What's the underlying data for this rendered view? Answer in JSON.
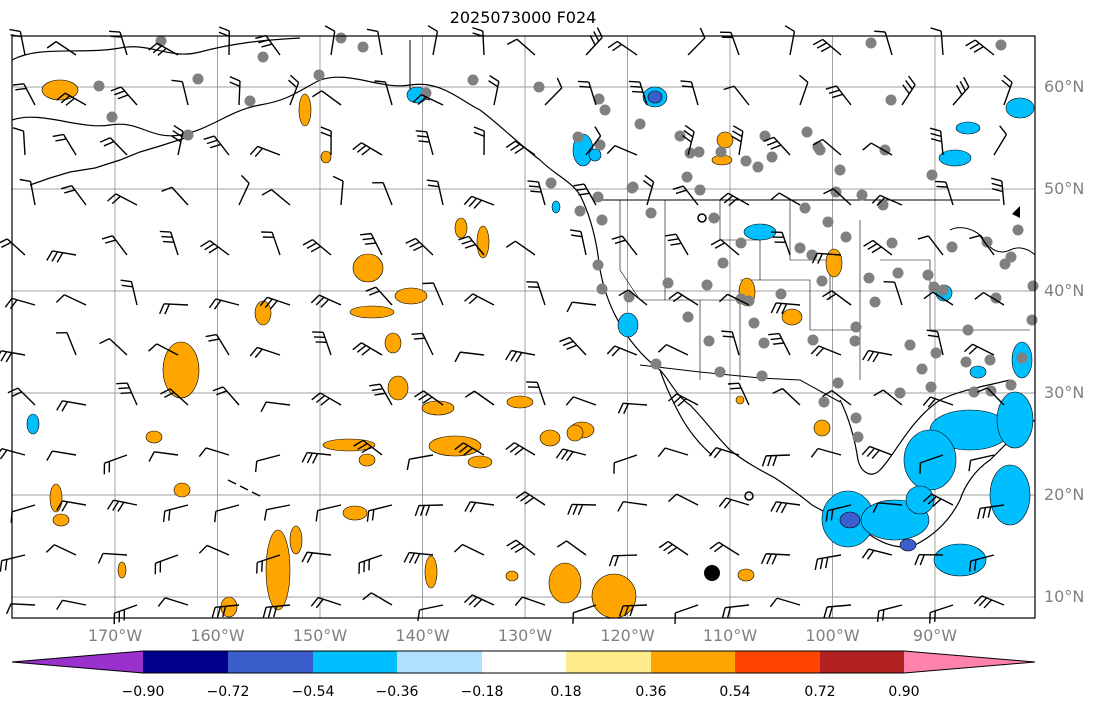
{
  "title": "2025073000 F024",
  "lon_labels": [
    {
      "text": "170°W",
      "lon": -170
    },
    {
      "text": "160°W",
      "lon": -160
    },
    {
      "text": "150°W",
      "lon": -150
    },
    {
      "text": "140°W",
      "lon": -140
    },
    {
      "text": "130°W",
      "lon": -130
    },
    {
      "text": "120°W",
      "lon": -120
    },
    {
      "text": "110°W",
      "lon": -110
    },
    {
      "text": "100°W",
      "lon": -100
    },
    {
      "text": "90°W",
      "lon": -90
    }
  ],
  "lat_labels": [
    {
      "text": "60°N",
      "lat": 60
    },
    {
      "text": "50°N",
      "lat": 50
    },
    {
      "text": "40°N",
      "lat": 40
    },
    {
      "text": "30°N",
      "lat": 30
    },
    {
      "text": "20°N",
      "lat": 20
    },
    {
      "text": "10°N",
      "lat": 10
    }
  ],
  "colorbar": {
    "ticks": [
      "−0.90",
      "−0.72",
      "−0.54",
      "−0.36",
      "−0.18",
      "0.18",
      "0.36",
      "0.54",
      "0.72",
      "0.90"
    ],
    "colors": [
      "#9932cc",
      "#00008b",
      "#3a5fcd",
      "#00bfff",
      "#b0e2ff",
      "#ffffff",
      "#ffec8b",
      "#ffa500",
      "#ff4500",
      "#b22222",
      "#ff82ab"
    ]
  },
  "map_colors": {
    "ocean": "#ffffff",
    "grid": "#a0a0a0",
    "coast": "#000000",
    "positive_fill": "#ffa500",
    "positive_light": "#ffec8b",
    "negative_fill": "#00bfff",
    "negative_light": "#b0e2ff",
    "negative_dark": "#3a5fcd",
    "station_dot": "#808080"
  }
}
